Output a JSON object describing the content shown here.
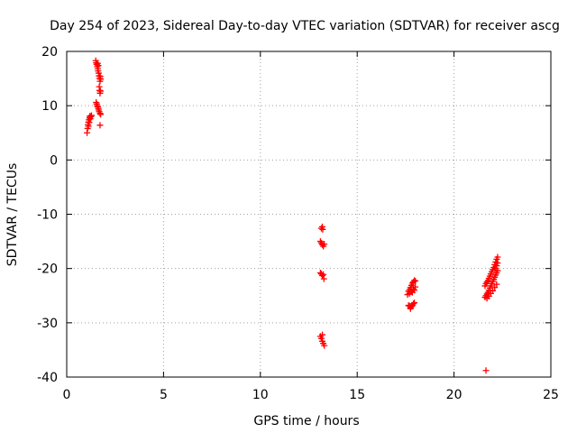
{
  "chart_data": {
    "type": "scatter",
    "title": "Day 254 of 2023, Sidereal Day-to-day VTEC variation (SDTVAR) for receiver ascg",
    "xlabel": "GPS time / hours",
    "ylabel": "SDTVAR / TECUs",
    "xlim": [
      0,
      25
    ],
    "ylim": [
      -40,
      20
    ],
    "x_ticks": [
      0,
      5,
      10,
      15,
      20,
      25
    ],
    "y_ticks": [
      -40,
      -30,
      -20,
      -10,
      0,
      10,
      20
    ],
    "grid": true,
    "marker": "+",
    "series": [
      {
        "name": "SDTVAR",
        "color": "#ff0000",
        "points": [
          [
            1.05,
            5.0
          ],
          [
            1.08,
            5.8
          ],
          [
            1.1,
            6.5
          ],
          [
            1.12,
            7.0
          ],
          [
            1.15,
            7.4
          ],
          [
            1.18,
            7.8
          ],
          [
            1.2,
            8.1
          ],
          [
            1.22,
            7.6
          ],
          [
            1.25,
            8.0
          ],
          [
            1.28,
            8.2
          ],
          [
            1.12,
            6.2
          ],
          [
            1.16,
            6.9
          ],
          [
            1.5,
            18.3
          ],
          [
            1.52,
            17.9
          ],
          [
            1.55,
            17.6
          ],
          [
            1.58,
            17.2
          ],
          [
            1.6,
            16.8
          ],
          [
            1.62,
            16.4
          ],
          [
            1.65,
            16.0
          ],
          [
            1.67,
            15.5
          ],
          [
            1.7,
            15.0
          ],
          [
            1.72,
            14.5
          ],
          [
            1.75,
            14.9
          ],
          [
            1.68,
            13.5
          ],
          [
            1.7,
            12.8
          ],
          [
            1.72,
            12.3
          ],
          [
            1.74,
            12.7
          ],
          [
            1.6,
            17.8
          ],
          [
            1.63,
            17.4
          ],
          [
            1.73,
            15.4
          ],
          [
            1.52,
            10.6
          ],
          [
            1.55,
            10.3
          ],
          [
            1.58,
            10.0
          ],
          [
            1.6,
            9.8
          ],
          [
            1.63,
            9.5
          ],
          [
            1.65,
            9.2
          ],
          [
            1.68,
            8.9
          ],
          [
            1.72,
            8.6
          ],
          [
            1.75,
            8.4
          ],
          [
            1.72,
            6.4
          ],
          [
            13.15,
            -12.6
          ],
          [
            13.2,
            -12.3
          ],
          [
            13.22,
            -12.8
          ],
          [
            13.1,
            -15.0
          ],
          [
            13.15,
            -15.3
          ],
          [
            13.2,
            -15.6
          ],
          [
            13.25,
            -15.9
          ],
          [
            13.3,
            -15.5
          ],
          [
            13.1,
            -20.8
          ],
          [
            13.15,
            -21.0
          ],
          [
            13.2,
            -21.3
          ],
          [
            13.25,
            -21.1
          ],
          [
            13.28,
            -21.9
          ],
          [
            13.1,
            -32.5
          ],
          [
            13.15,
            -32.9
          ],
          [
            13.2,
            -33.4
          ],
          [
            13.25,
            -33.8
          ],
          [
            13.3,
            -34.2
          ],
          [
            13.2,
            -32.2
          ],
          [
            17.6,
            -24.8
          ],
          [
            17.65,
            -24.2
          ],
          [
            17.7,
            -23.9
          ],
          [
            17.75,
            -23.5
          ],
          [
            17.8,
            -23.1
          ],
          [
            17.85,
            -22.7
          ],
          [
            17.9,
            -22.5
          ],
          [
            17.95,
            -22.2
          ],
          [
            18.0,
            -22.3
          ],
          [
            17.7,
            -24.6
          ],
          [
            17.8,
            -24.3
          ],
          [
            17.9,
            -23.8
          ],
          [
            18.0,
            -23.4
          ],
          [
            17.85,
            -24.4
          ],
          [
            17.95,
            -24.0
          ],
          [
            17.7,
            -26.9
          ],
          [
            17.75,
            -27.2
          ],
          [
            17.8,
            -27.0
          ],
          [
            17.85,
            -26.8
          ],
          [
            17.9,
            -26.5
          ],
          [
            17.95,
            -26.3
          ],
          [
            17.65,
            -26.8
          ],
          [
            17.75,
            -27.4
          ],
          [
            21.6,
            -23.2
          ],
          [
            21.65,
            -22.8
          ],
          [
            21.7,
            -22.5
          ],
          [
            21.75,
            -22.2
          ],
          [
            21.8,
            -21.8
          ],
          [
            21.85,
            -21.4
          ],
          [
            21.9,
            -21.0
          ],
          [
            21.95,
            -20.6
          ],
          [
            22.0,
            -20.2
          ],
          [
            22.05,
            -19.8
          ],
          [
            22.1,
            -19.3
          ],
          [
            22.15,
            -18.8
          ],
          [
            22.2,
            -18.3
          ],
          [
            22.25,
            -17.9
          ],
          [
            21.6,
            -25.3
          ],
          [
            21.65,
            -25.0
          ],
          [
            21.7,
            -24.7
          ],
          [
            21.75,
            -24.4
          ],
          [
            21.8,
            -24.0
          ],
          [
            21.85,
            -23.6
          ],
          [
            21.9,
            -23.2
          ],
          [
            21.95,
            -22.8
          ],
          [
            22.0,
            -22.4
          ],
          [
            22.05,
            -22.0
          ],
          [
            22.1,
            -21.6
          ],
          [
            22.15,
            -21.2
          ],
          [
            22.2,
            -20.8
          ],
          [
            22.25,
            -20.4
          ],
          [
            21.7,
            -25.5
          ],
          [
            21.8,
            -25.1
          ],
          [
            21.9,
            -24.6
          ],
          [
            22.0,
            -24.1
          ],
          [
            22.1,
            -23.5
          ],
          [
            22.2,
            -22.9
          ],
          [
            22.2,
            -19.5
          ],
          [
            22.25,
            -19.0
          ],
          [
            22.15,
            -20.0
          ],
          [
            21.65,
            -38.8
          ]
        ]
      }
    ]
  }
}
